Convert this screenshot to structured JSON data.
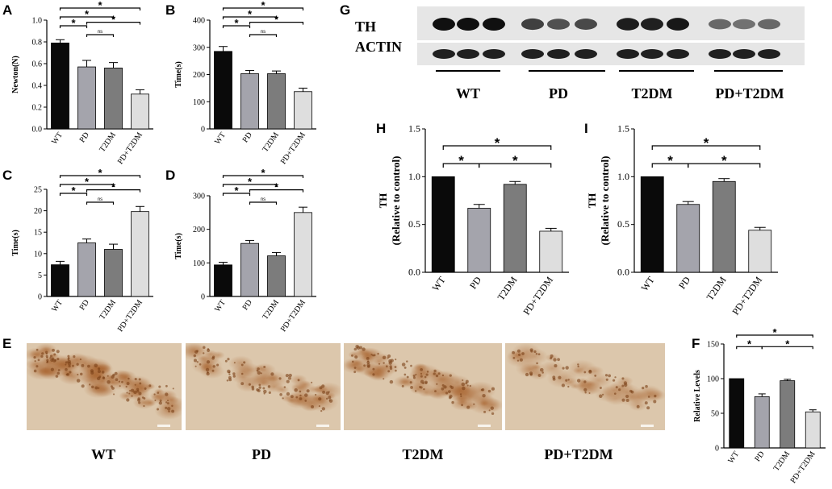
{
  "panels": {
    "A": "A",
    "B": "B",
    "C": "C",
    "D": "D",
    "E": "E",
    "F": "F",
    "G": "G",
    "H": "H",
    "I": "I"
  },
  "colors": {
    "WT": "#0a0a0a",
    "PD": "#a4a4ac",
    "T2DM": "#7c7c7c",
    "PD+T2DM": "#dedede",
    "tissue_background": "#dcc7ac",
    "stain": "#a8632e",
    "blot_band": "#101010",
    "blot_background": "#e6e6e6"
  },
  "chart_data": [
    {
      "id": "A",
      "type": "bar",
      "categories": [
        "WT",
        "PD",
        "T2DM",
        "PD+T2DM"
      ],
      "values": [
        0.79,
        0.57,
        0.56,
        0.32
      ],
      "errors": [
        0.03,
        0.06,
        0.05,
        0.04
      ],
      "ylabel": "Newton(N)",
      "xlabel": "",
      "ylim": [
        0,
        1.0
      ],
      "yticks": [
        "0.0",
        "0.2",
        "0.4",
        "0.6",
        "0.8",
        "1.0"
      ],
      "significance": [
        {
          "from": 0,
          "to": 1,
          "label": "*"
        },
        {
          "from": 0,
          "to": 2,
          "label": "*"
        },
        {
          "from": 0,
          "to": 3,
          "label": "*"
        },
        {
          "from": 1,
          "to": 2,
          "label": "ns"
        },
        {
          "from": 1,
          "to": 3,
          "label": "*"
        }
      ]
    },
    {
      "id": "B",
      "type": "bar",
      "categories": [
        "WT",
        "PD",
        "T2DM",
        "PD+T2DM"
      ],
      "values": [
        285,
        203,
        203,
        137
      ],
      "errors": [
        18,
        12,
        10,
        13
      ],
      "ylabel": "Time(s)",
      "xlabel": "",
      "ylim": [
        0,
        400
      ],
      "yticks": [
        "0",
        "100",
        "200",
        "300",
        "400"
      ],
      "significance": [
        {
          "from": 0,
          "to": 1,
          "label": "*"
        },
        {
          "from": 0,
          "to": 2,
          "label": "*"
        },
        {
          "from": 0,
          "to": 3,
          "label": "*"
        },
        {
          "from": 1,
          "to": 2,
          "label": "ns"
        },
        {
          "from": 1,
          "to": 3,
          "label": "*"
        }
      ]
    },
    {
      "id": "C",
      "type": "bar",
      "categories": [
        "WT",
        "PD",
        "T2DM",
        "PD+T2DM"
      ],
      "values": [
        7.4,
        12.5,
        11.0,
        19.8
      ],
      "errors": [
        0.8,
        0.9,
        1.2,
        1.2
      ],
      "ylabel": "Time(s)",
      "xlabel": "",
      "ylim": [
        0,
        25
      ],
      "yticks": [
        "0",
        "5",
        "10",
        "15",
        "20",
        "25"
      ],
      "significance": [
        {
          "from": 0,
          "to": 1,
          "label": "*"
        },
        {
          "from": 0,
          "to": 2,
          "label": "*"
        },
        {
          "from": 0,
          "to": 3,
          "label": "*"
        },
        {
          "from": 1,
          "to": 2,
          "label": "ns"
        },
        {
          "from": 1,
          "to": 3,
          "label": "*"
        }
      ]
    },
    {
      "id": "D",
      "type": "bar",
      "categories": [
        "WT",
        "PD",
        "T2DM",
        "PD+T2DM"
      ],
      "values": [
        94,
        158,
        121,
        250
      ],
      "errors": [
        8,
        9,
        10,
        16
      ],
      "ylabel": "Time(s)",
      "xlabel": "",
      "ylim": [
        0,
        300
      ],
      "yticks": [
        "0",
        "100",
        "200",
        "300"
      ],
      "significance": [
        {
          "from": 0,
          "to": 1,
          "label": "*"
        },
        {
          "from": 0,
          "to": 2,
          "label": "*"
        },
        {
          "from": 0,
          "to": 3,
          "label": "*"
        },
        {
          "from": 1,
          "to": 2,
          "label": "ns"
        },
        {
          "from": 1,
          "to": 3,
          "label": "*"
        }
      ]
    },
    {
      "id": "H",
      "type": "bar",
      "categories": [
        "WT",
        "PD",
        "T2DM",
        "PD+T2DM"
      ],
      "values": [
        1.0,
        0.67,
        0.92,
        0.43
      ],
      "errors": [
        0.0,
        0.04,
        0.03,
        0.03
      ],
      "ylabel": [
        "TH",
        "(Relative to control)"
      ],
      "xlabel": "",
      "ylim": [
        0,
        1.5
      ],
      "yticks": [
        "0.0",
        "0.5",
        "1.0",
        "1.5"
      ],
      "significance": [
        {
          "from": 0,
          "to": 1,
          "label": "*"
        },
        {
          "from": 0,
          "to": 3,
          "label": "*"
        },
        {
          "from": 1,
          "to": 3,
          "label": "*"
        }
      ]
    },
    {
      "id": "I",
      "type": "bar",
      "categories": [
        "WT",
        "PD",
        "T2DM",
        "PD+T2DM"
      ],
      "values": [
        1.0,
        0.71,
        0.95,
        0.44
      ],
      "errors": [
        0.0,
        0.03,
        0.03,
        0.03
      ],
      "ylabel": [
        "TH",
        "(Relative to control)"
      ],
      "xlabel": "",
      "ylim": [
        0,
        1.5
      ],
      "yticks": [
        "0.0",
        "0.5",
        "1.0",
        "1.5"
      ],
      "significance": [
        {
          "from": 0,
          "to": 1,
          "label": "*"
        },
        {
          "from": 0,
          "to": 3,
          "label": "*"
        },
        {
          "from": 1,
          "to": 3,
          "label": "*"
        }
      ]
    },
    {
      "id": "F",
      "type": "bar",
      "categories": [
        "WT",
        "PD",
        "T2DM",
        "PD+T2DM"
      ],
      "values": [
        100,
        74,
        97,
        52
      ],
      "errors": [
        0,
        4,
        2,
        3
      ],
      "ylabel": "Relative Levels",
      "xlabel": "",
      "ylim": [
        0,
        150
      ],
      "yticks": [
        "0",
        "50",
        "100",
        "150"
      ],
      "significance": [
        {
          "from": 0,
          "to": 1,
          "label": "*"
        },
        {
          "from": 0,
          "to": 3,
          "label": "*"
        },
        {
          "from": 1,
          "to": 3,
          "label": "*"
        }
      ]
    }
  ],
  "western_blot": {
    "rows": [
      "TH",
      "ACTIN"
    ],
    "groups": [
      "WT",
      "PD",
      "T2DM",
      "PD+T2DM"
    ],
    "lanes_per_group": 3,
    "th_band_intensity": [
      1.0,
      1.0,
      1.0,
      0.7,
      0.6,
      0.65,
      0.92,
      0.9,
      0.95,
      0.45,
      0.4,
      0.45
    ],
    "actin_band_intensity": [
      0.9,
      0.9,
      0.9,
      0.9,
      0.9,
      0.9,
      0.9,
      0.9,
      0.9,
      0.9,
      0.9,
      0.9
    ]
  },
  "micrographs": {
    "labels": [
      "WT",
      "PD",
      "T2DM",
      "PD+T2DM"
    ],
    "stain_density": [
      1.0,
      0.6,
      0.8,
      0.4
    ]
  }
}
